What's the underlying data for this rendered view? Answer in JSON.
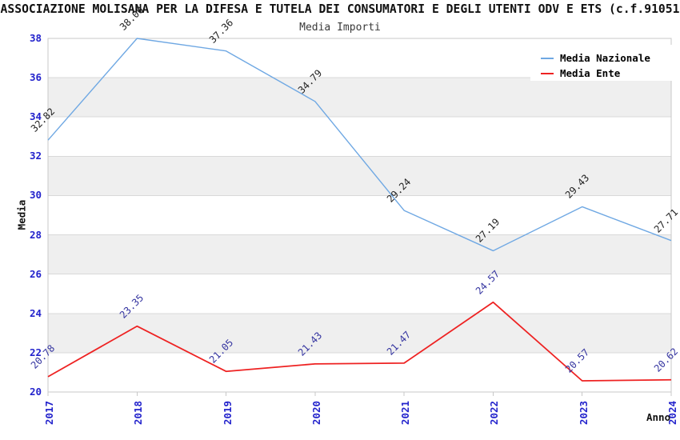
{
  "header": {
    "title": "ASSOCIAZIONE MOLISANA PER LA DIFESA E TUTELA DEI CONSUMATORI E DEGLI UTENTI ODV E ETS (c.f.91051",
    "subtitle": "Media Importi"
  },
  "chart_data": {
    "type": "line",
    "title": "Media Importi",
    "x": [
      "2017",
      "2018",
      "2019",
      "2020",
      "2021",
      "2022",
      "2023",
      "2024"
    ],
    "series": [
      {
        "name": "Media Nazionale",
        "color": "#6fa8e3",
        "label_color": "#222222",
        "values": [
          32.82,
          38.0,
          37.36,
          34.79,
          29.24,
          27.19,
          29.43,
          27.71
        ]
      },
      {
        "name": "Media Ente",
        "color": "#ee2222",
        "label_color": "#3434a0",
        "values": [
          20.78,
          23.35,
          21.05,
          21.43,
          21.47,
          24.57,
          20.57,
          20.62
        ]
      }
    ],
    "xlabel": "Anno",
    "ylabel": "Media",
    "ylim": [
      20,
      38
    ],
    "ytick_step": 2,
    "grid": true,
    "banded": true,
    "legend_position": "top-right",
    "colors": {
      "tick_label": "#2323cc",
      "band_fill": "#efefef",
      "gridline": "#d9d9d9",
      "plot_border": "#c8c8c8"
    }
  }
}
